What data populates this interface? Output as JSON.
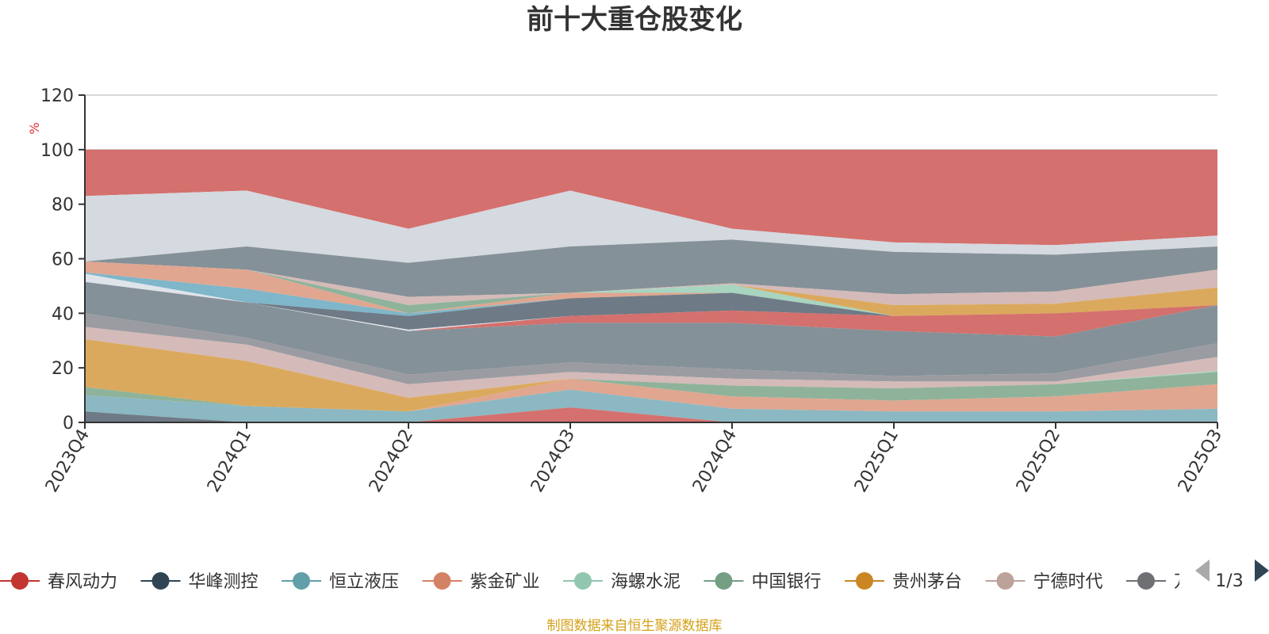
{
  "chart_data": {
    "type": "area",
    "title": "前十大重仓股变化",
    "ylabel": "%",
    "ylim": [
      0,
      120
    ],
    "yticks": [
      0,
      20,
      40,
      60,
      80,
      100,
      120
    ],
    "grid": true,
    "categories": [
      "2023Q4",
      "2024Q1",
      "2024Q2",
      "2024Q3",
      "2024Q4",
      "2025Q1",
      "2025Q2",
      "2025Q3"
    ],
    "layers": [
      {
        "color": "#d4706d",
        "top": [
          100,
          100,
          100,
          100,
          100,
          100,
          100,
          100
        ]
      },
      {
        "color": "#d5d9e0",
        "top": [
          83,
          85,
          71,
          85,
          71,
          66,
          65,
          68.5
        ]
      },
      {
        "color": "#859198",
        "top": [
          59,
          64.5,
          58.5,
          64.5,
          67,
          62.5,
          61.5,
          64.5
        ]
      },
      {
        "color": "#d4bab8",
        "top": [
          59,
          56,
          46,
          47.5,
          51,
          47,
          48,
          56
        ]
      },
      {
        "color": "#dba95d",
        "top": [
          59,
          56,
          43,
          47.5,
          50.5,
          43,
          43.5,
          49.5
        ]
      },
      {
        "color": "#d4706d",
        "top": [
          59,
          56,
          43,
          47.5,
          50.5,
          39,
          40,
          43
        ]
      },
      {
        "color": "#a8d4c0",
        "top": [
          59,
          56,
          43,
          47.5,
          50.5,
          39,
          40,
          43
        ]
      },
      {
        "color": "#8fb39a",
        "top": [
          59,
          56,
          43,
          47.5,
          47.5,
          39,
          40,
          43
        ]
      },
      {
        "color": "#e0a690",
        "top": [
          59,
          56,
          40,
          47.5,
          47.5,
          39,
          40,
          43
        ]
      },
      {
        "color": "#7fb6c9",
        "top": [
          55,
          49,
          40,
          45.5,
          47.5,
          39,
          40,
          43
        ]
      },
      {
        "color": "#6e7a86",
        "top": [
          54.5,
          44,
          39,
          45.5,
          47.5,
          39,
          40,
          43
        ]
      },
      {
        "color": "#dfe3ea",
        "top": [
          54.5,
          44,
          34,
          39,
          41,
          39,
          40,
          43
        ]
      },
      {
        "color": "#d4706d",
        "top": [
          51.5,
          44,
          33.5,
          39,
          41,
          39,
          40,
          43
        ]
      },
      {
        "color": "#859198",
        "top": [
          51.5,
          44,
          33.5,
          36.5,
          36.5,
          33.5,
          31.5,
          43
        ]
      },
      {
        "color": "#9a9ca2",
        "top": [
          40,
          31,
          17.5,
          22,
          19.5,
          17,
          18,
          29
        ]
      },
      {
        "color": "#d4bab8",
        "top": [
          35,
          28.5,
          14,
          18.5,
          16,
          15,
          15,
          24
        ]
      },
      {
        "color": "#dba95d",
        "top": [
          30.5,
          22.5,
          9,
          16,
          13.5,
          12.5,
          14,
          19
        ]
      },
      {
        "color": "#a8d4c0",
        "top": [
          13,
          6,
          4,
          16,
          13.5,
          12.5,
          14,
          19
        ]
      },
      {
        "color": "#8fb39a",
        "top": [
          13,
          6,
          4,
          16,
          13.5,
          12.5,
          14,
          18.5
        ]
      },
      {
        "color": "#e0a690",
        "top": [
          10,
          6,
          4,
          16,
          9.5,
          8,
          9.5,
          14
        ]
      },
      {
        "color": "#8bb8c2",
        "top": [
          10,
          6,
          4,
          12,
          5,
          4,
          4,
          5
        ]
      },
      {
        "color": "#d4706d",
        "top": [
          4,
          0,
          0,
          5.5,
          0,
          0,
          0,
          0
        ]
      },
      {
        "color": "#6e7a86",
        "top": [
          4,
          0,
          0,
          0,
          0,
          0,
          0,
          0
        ]
      }
    ],
    "legend": {
      "position": "bottom",
      "items": [
        {
          "name": "春风动力",
          "color": "#c23531"
        },
        {
          "name": "华峰测控",
          "color": "#2f4554"
        },
        {
          "name": "恒立液压",
          "color": "#61a0a8"
        },
        {
          "name": "紫金矿业",
          "color": "#d48265"
        },
        {
          "name": "海螺水泥",
          "color": "#91c7ae"
        },
        {
          "name": "中国银行",
          "color": "#749f83"
        },
        {
          "name": "贵州茅台",
          "color": "#ca8622"
        },
        {
          "name": "宁德时代",
          "color": "#bda29a"
        },
        {
          "name": "万",
          "color": "#6e7074"
        }
      ],
      "pager": "1/3"
    },
    "source": "制图数据来自恒生聚源数据库"
  }
}
